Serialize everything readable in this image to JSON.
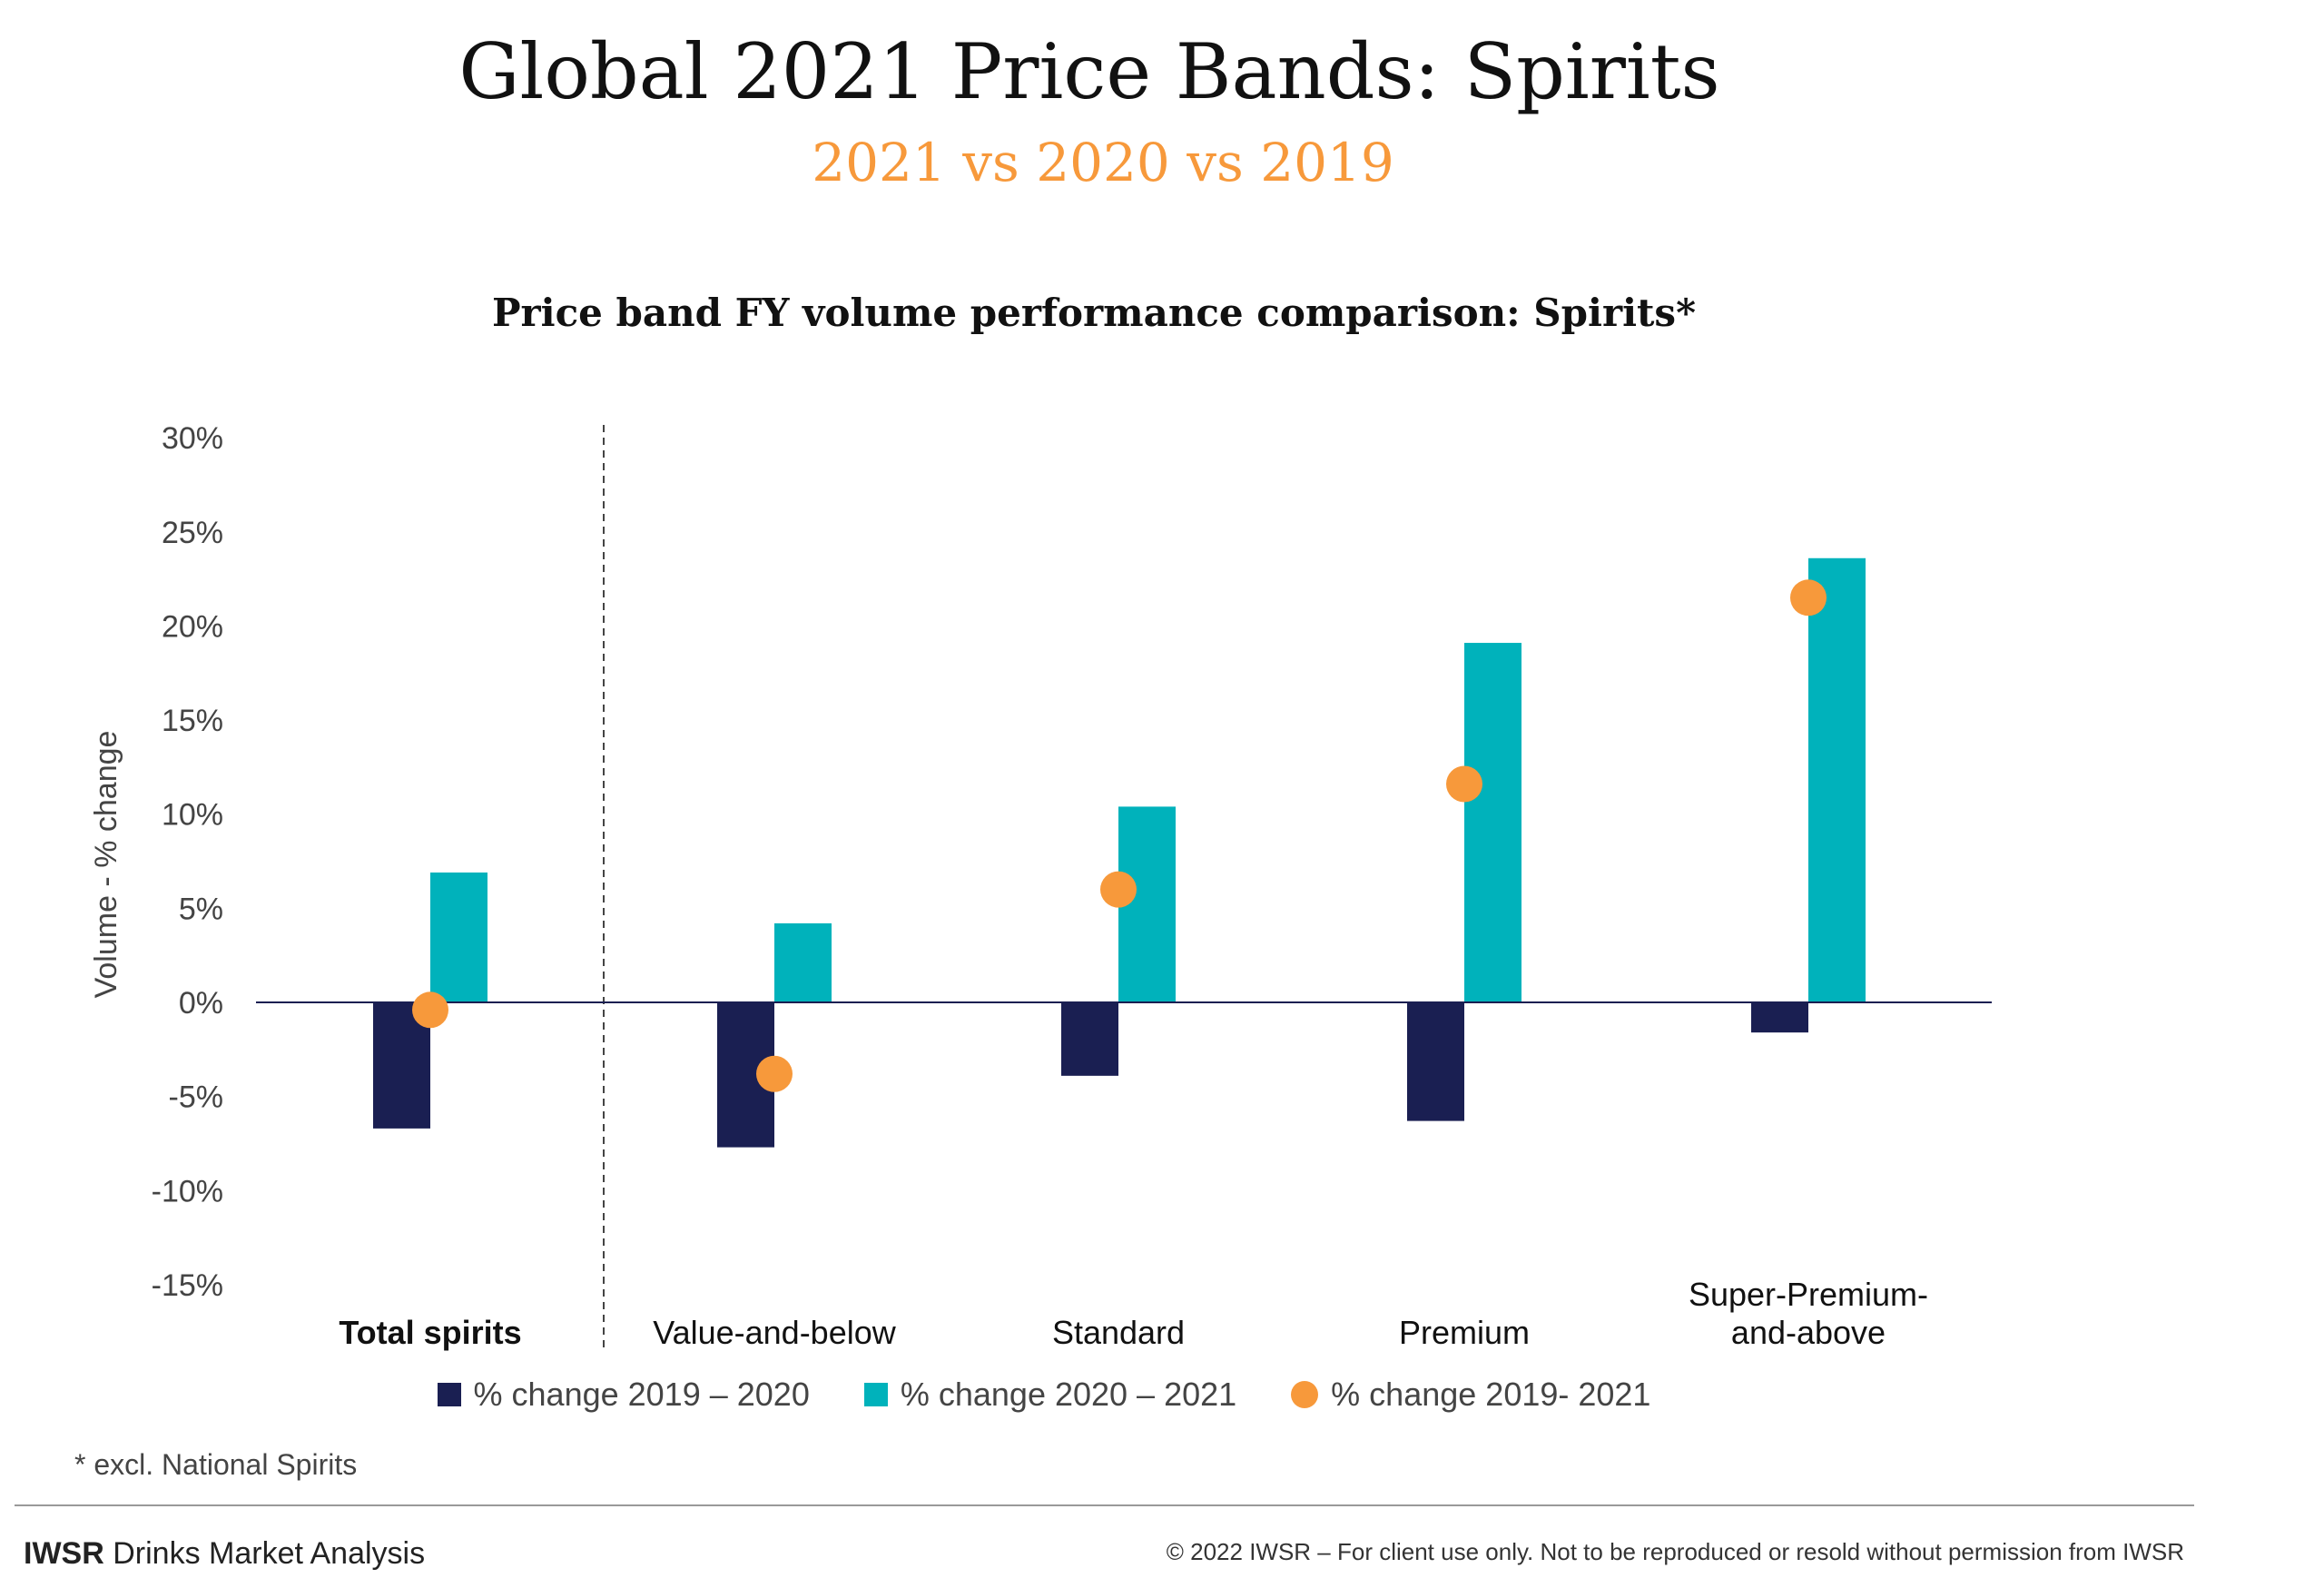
{
  "header": {
    "title": "Global 2021 Price Bands: Spirits",
    "subtitle": "2021 vs 2020 vs 2019"
  },
  "chart_data": {
    "type": "bar",
    "title": "Price band FY volume performance comparison: Spirits*",
    "ylabel": "Volume - % change",
    "xlabel": "",
    "ylim": [
      -15,
      30
    ],
    "yticks": [
      "30%",
      "25%",
      "20%",
      "15%",
      "10%",
      "5%",
      "0%",
      "-5%",
      "-10%",
      "-15%"
    ],
    "ytick_values": [
      30,
      25,
      20,
      15,
      10,
      5,
      0,
      -5,
      -10,
      -15
    ],
    "categories": [
      "Total spirits",
      "Value-and-below",
      "Standard",
      "Premium",
      "Super-Premium-and-above"
    ],
    "category_lines": [
      [
        "Total spirits"
      ],
      [
        "Value-and-below"
      ],
      [
        "Standard"
      ],
      [
        "Premium"
      ],
      [
        "Super-Premium-",
        "and-above"
      ]
    ],
    "series": [
      {
        "name": "% change 2019 – 2020",
        "kind": "bar",
        "color": "#1a1f52",
        "values": [
          -6.7,
          -7.7,
          -3.9,
          -6.3,
          -1.6
        ]
      },
      {
        "name": "% change 2020 – 2021",
        "kind": "bar",
        "color": "#00b2bb",
        "values": [
          6.9,
          4.2,
          10.4,
          19.1,
          23.6
        ]
      },
      {
        "name": "% change 2019- 2021",
        "kind": "dot",
        "color": "#f7993b",
        "values": [
          -0.4,
          -3.8,
          6.0,
          11.6,
          21.5
        ]
      }
    ],
    "legend_position": "bottom",
    "grid": false
  },
  "footnote": "* excl. National Spirits",
  "footer": {
    "brand_bold": "IWSR",
    "brand_rest": " Drinks Market Analysis",
    "copyright": "© 2022 IWSR – For client use only. Not to be reproduced or resold without permission from IWSR"
  }
}
